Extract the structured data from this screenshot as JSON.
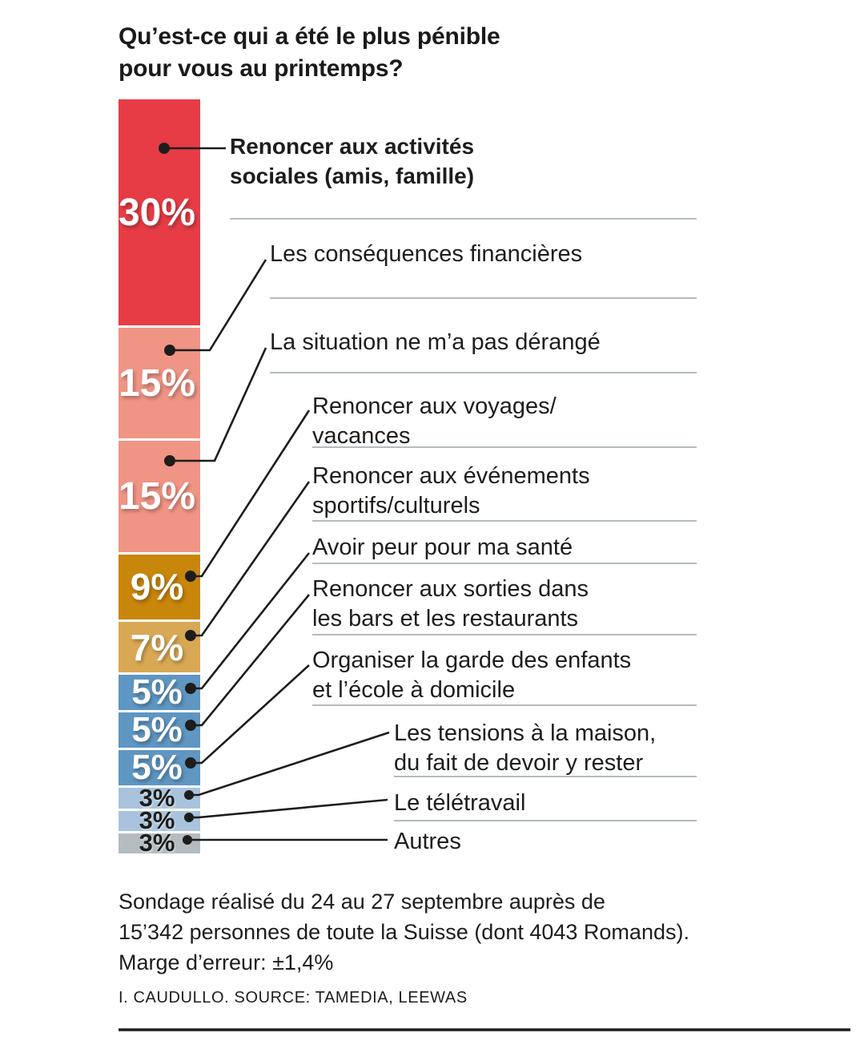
{
  "title": "Qu’est-ce qui a été le plus pénible\npour vous au printemps?",
  "chart_data": {
    "type": "bar",
    "variant": "single-column-stacked",
    "unit": "%",
    "title": "Qu’est-ce qui a été le plus pénible pour vous au printemps?",
    "total": 100,
    "segments": [
      {
        "label": "Renoncer aux activités sociales (amis, famille)",
        "value": 30,
        "display": "30%",
        "color": "#e73c46",
        "value_text_color": "#ffffff"
      },
      {
        "label": "Les conséquences financières",
        "value": 15,
        "display": "15%",
        "color": "#f09486",
        "value_text_color": "#ffffff"
      },
      {
        "label": "La situation ne m’a pas dérangé",
        "value": 15,
        "display": "15%",
        "color": "#f09486",
        "value_text_color": "#ffffff"
      },
      {
        "label": "Renoncer aux voyages/vacances",
        "value": 9,
        "display": "9%",
        "color": "#c8860b",
        "value_text_color": "#ffffff"
      },
      {
        "label": "Renoncer aux événements sportifs/culturels",
        "value": 7,
        "display": "7%",
        "color": "#d9a854",
        "value_text_color": "#ffffff"
      },
      {
        "label": "Avoir peur pour ma santé",
        "value": 5,
        "display": "5%",
        "color": "#5f96c2",
        "value_text_color": "#ffffff"
      },
      {
        "label": "Renoncer aux sorties dans les bars et les restaurants",
        "value": 5,
        "display": "5%",
        "color": "#5f96c2",
        "value_text_color": "#ffffff"
      },
      {
        "label": "Organiser la garde des enfants et l’école à domicile",
        "value": 5,
        "display": "5%",
        "color": "#5f96c2",
        "value_text_color": "#ffffff"
      },
      {
        "label": "Les tensions à la maison, du fait de devoir y rester",
        "value": 3,
        "display": "3%",
        "color": "#a9c3dd",
        "value_text_color": "#1d1d1b"
      },
      {
        "label": "Le télétravail",
        "value": 3,
        "display": "3%",
        "color": "#a9c3dd",
        "value_text_color": "#1d1d1b"
      },
      {
        "label": "Autres",
        "value": 3,
        "display": "3%",
        "color": "#b5bcc0",
        "value_text_color": "#1d1d1b"
      }
    ]
  },
  "callout_labels": [
    {
      "text": "Renoncer aux activités\nsociales (amis, famille)"
    },
    {
      "text": "Les conséquences financières"
    },
    {
      "text": "La situation ne m’a pas dérangé"
    },
    {
      "text": "Renoncer aux voyages/\nvacances"
    },
    {
      "text": "Renoncer aux événements\nsportifs/culturels"
    },
    {
      "text": "Avoir peur pour ma santé"
    },
    {
      "text": "Renoncer aux sorties dans\nles bars et les restaurants"
    },
    {
      "text": "Organiser la garde des enfants\net l’école à domicile"
    },
    {
      "text": "Les tensions à la maison,\ndu fait de devoir y rester"
    },
    {
      "text": "Le télétravail"
    },
    {
      "text": "Autres"
    }
  ],
  "footnote": "Sondage réalisé du 24 au 27 septembre auprès de\n15’342 personnes de toute la Suisse (dont 4043 Romands).\nMarge d’erreur: ±1,4%",
  "credit": "I. CAUDULLO. SOURCE: TAMEDIA, LEEWAS",
  "colors": {
    "text": "#1d1d1b",
    "divider": "#9ba6aa",
    "bottom_rule": "#1d1d1b",
    "background": "#ffffff"
  }
}
